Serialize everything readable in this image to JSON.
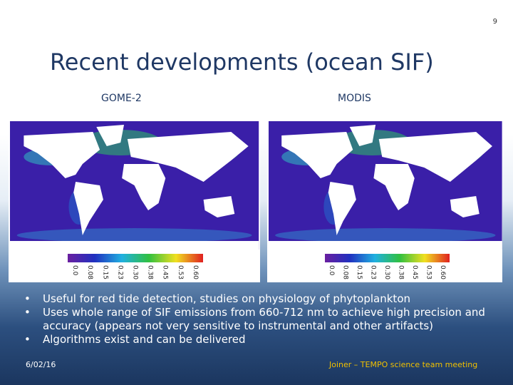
{
  "slide": {
    "page_number": "9",
    "title": "Recent developments (ocean SIF)",
    "panels": [
      {
        "label": "GOME-2",
        "colorbar_ticks": [
          "0.0",
          "0.08",
          "0.15",
          "0.23",
          "0.30",
          "0.38",
          "0.45",
          "0.53",
          "0.60"
        ]
      },
      {
        "label": "MODIS",
        "colorbar_ticks": [
          "0.0",
          "0.08",
          "0.15",
          "0.23",
          "0.30",
          "0.38",
          "0.45",
          "0.53",
          "0.60"
        ]
      }
    ],
    "bullets": [
      "Useful for red tide detection, studies on physiology of phytoplankton",
      "Uses whole range of SIF emissions from 660-712 nm to achieve high precision and accuracy (appears not very sensitive to instrumental and other artifacts)",
      "Algorithms exist and can be delivered"
    ],
    "footer": {
      "date": "6/02/16",
      "credit": "Joiner – TEMPO science team meeting"
    }
  }
}
